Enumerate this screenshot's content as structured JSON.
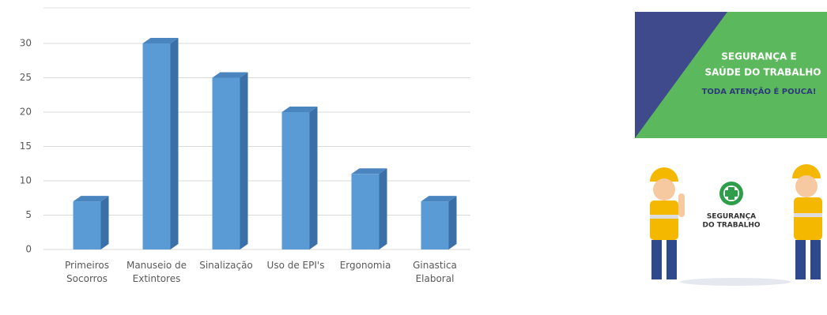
{
  "chart_data": {
    "type": "bar",
    "categories": [
      "Primeiros Socorros",
      "Manuseio de Extintores",
      "Sinalização",
      "Uso de EPI's",
      "Ergonomia",
      "Ginastica Elaboral"
    ],
    "values": [
      7,
      30,
      25,
      20,
      11,
      7
    ],
    "color": "#5b9bd5",
    "ylim": [
      0,
      30
    ],
    "yticks": [
      0,
      5,
      10,
      15,
      20,
      25,
      30
    ],
    "grid": true
  },
  "poster": {
    "headline": "SEGURANÇA E",
    "headline2": "SAÚDE DO TRABALHO",
    "tagline": "TODA ATENÇÃO É POUCA!",
    "logo_text": "SEGURANÇA",
    "logo_text2": "DO TRABALHO"
  }
}
